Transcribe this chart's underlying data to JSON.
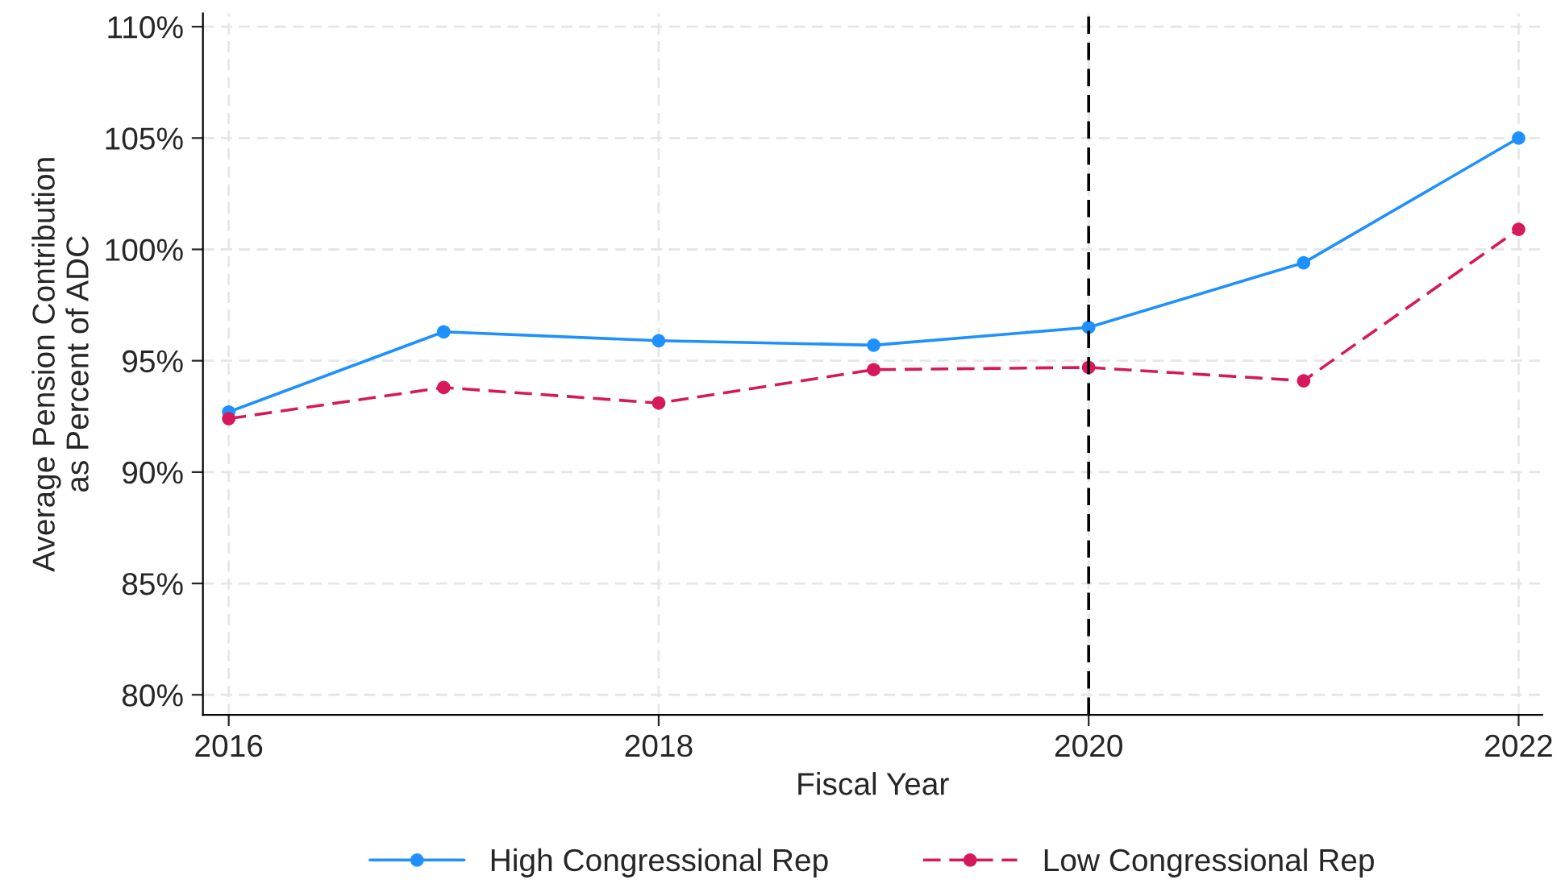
{
  "chart_data": {
    "type": "line",
    "xlabel": "Fiscal Year",
    "ylabel": "Average Pension Contribution\nas Percent of ADC",
    "x": [
      2016,
      2017,
      2018,
      2019,
      2020,
      2021,
      2022
    ],
    "series": [
      {
        "name": "High Congressional Rep",
        "color": "#1e90ff",
        "line_style": "solid",
        "values": [
          92.7,
          96.3,
          95.9,
          95.7,
          96.5,
          99.4,
          105.0
        ]
      },
      {
        "name": "Low Congressional Rep",
        "color": "#d6195b",
        "line_style": "dashed",
        "values": [
          92.4,
          93.8,
          93.1,
          94.6,
          94.7,
          94.1,
          100.9
        ]
      }
    ],
    "marker": "circle",
    "xlim": [
      2015.88,
      2022.11
    ],
    "xticks": [
      2016,
      2018,
      2020,
      2022
    ],
    "ylim": [
      79.1,
      110.6
    ],
    "yticks": [
      {
        "value": 80,
        "label": "80%"
      },
      {
        "value": 85,
        "label": "85%"
      },
      {
        "value": 90,
        "label": "90%"
      },
      {
        "value": 95,
        "label": "95%"
      },
      {
        "value": 100,
        "label": "100%"
      },
      {
        "value": 105,
        "label": "105%"
      },
      {
        "value": 110,
        "label": "110%"
      }
    ],
    "ref_lines": [
      {
        "axis": "x",
        "value": 2020,
        "label": null,
        "color": "#000000",
        "line_style": "dashed"
      }
    ],
    "grid": true,
    "legend": "bottom"
  }
}
